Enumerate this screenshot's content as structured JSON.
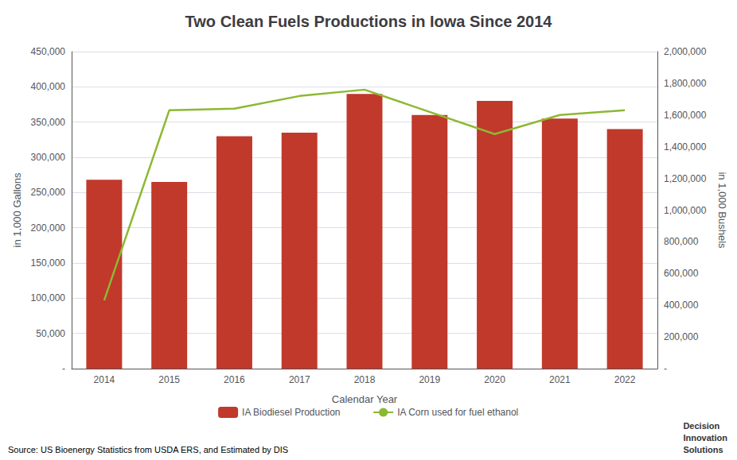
{
  "chart_data": {
    "type": "bar",
    "title": "Two Clean Fuels Productions in Iowa Since 2014",
    "xlabel": "Calendar Year",
    "ylabel": "in 1,000 Gallons",
    "y2label": "in 1,000 Bushels",
    "categories": [
      "2014",
      "2015",
      "2016",
      "2017",
      "2018",
      "2019",
      "2020",
      "2021",
      "2022"
    ],
    "series": [
      {
        "name": "IA Biodiesel Production",
        "type": "bar",
        "color": "#c0392b",
        "values": [
          268000,
          265000,
          330000,
          335000,
          390000,
          360000,
          380000,
          355000,
          340000
        ]
      },
      {
        "name": "IA Corn used for fuel ethanol",
        "type": "line",
        "color": "#8db832",
        "axis": "y2",
        "values": [
          430000,
          1630000,
          1640000,
          1720000,
          1760000,
          1620000,
          1480000,
          1600000,
          1630000
        ]
      }
    ],
    "ylim": [
      0,
      450000
    ],
    "yticks": [
      {
        "value": 0,
        "label": "-"
      },
      {
        "value": 50000,
        "label": "50,000"
      },
      {
        "value": 100000,
        "label": "100,000"
      },
      {
        "value": 150000,
        "label": "150,000"
      },
      {
        "value": 200000,
        "label": "200,000"
      },
      {
        "value": 250000,
        "label": "250,000"
      },
      {
        "value": 300000,
        "label": "300,000"
      },
      {
        "value": 350000,
        "label": "350,000"
      },
      {
        "value": 400000,
        "label": "400,000"
      },
      {
        "value": 450000,
        "label": "450,000"
      }
    ],
    "y2lim": [
      0,
      2000000
    ],
    "y2ticks": [
      {
        "value": 0,
        "label": "-"
      },
      {
        "value": 200000,
        "label": "200,000"
      },
      {
        "value": 400000,
        "label": "400,000"
      },
      {
        "value": 600000,
        "label": "600,000"
      },
      {
        "value": 800000,
        "label": "800,000"
      },
      {
        "value": 1000000,
        "label": "1,000,000"
      },
      {
        "value": 1200000,
        "label": "1,200,000"
      },
      {
        "value": 1400000,
        "label": "1,400,000"
      },
      {
        "value": 1600000,
        "label": "1,600,000"
      },
      {
        "value": 1800000,
        "label": "1,800,000"
      },
      {
        "value": 2000000,
        "label": "2,000,000"
      }
    ],
    "grid": true,
    "legend": "bottom",
    "annotations": [
      "Source: US Bioenergy Statistics from USDA ERS, and Estimated by DIS",
      "Decision\nInnovation\nSolutions"
    ]
  }
}
